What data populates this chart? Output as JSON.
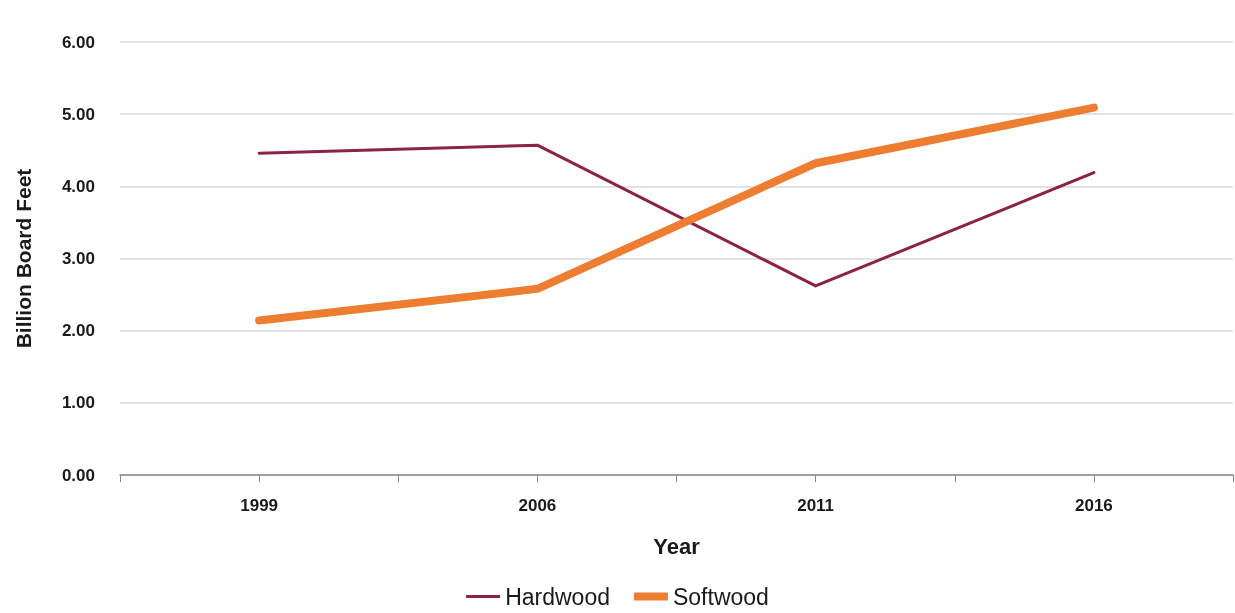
{
  "chart_data": {
    "type": "line",
    "xlabel": "Year",
    "ylabel": "Billion Board Feet",
    "categories": [
      "1999",
      "2006",
      "2011",
      "2016"
    ],
    "series": [
      {
        "name": "Hardwood",
        "color": "#8b2346",
        "values": [
          4.46,
          4.57,
          2.62,
          4.19
        ]
      },
      {
        "name": "Softwood",
        "color": "#ed7d31",
        "values": [
          2.14,
          2.58,
          4.32,
          5.09
        ]
      }
    ],
    "ylim": [
      0,
      6
    ],
    "yticks": [
      {
        "value": 0,
        "label": "0.00"
      },
      {
        "value": 1,
        "label": "1.00"
      },
      {
        "value": 2,
        "label": "2.00"
      },
      {
        "value": 3,
        "label": "3.00"
      },
      {
        "value": 4,
        "label": "4.00"
      },
      {
        "value": 5,
        "label": "5.00"
      },
      {
        "value": 6,
        "label": "6.00"
      }
    ],
    "grid": "y",
    "legend": "bottom",
    "marker": "none"
  }
}
